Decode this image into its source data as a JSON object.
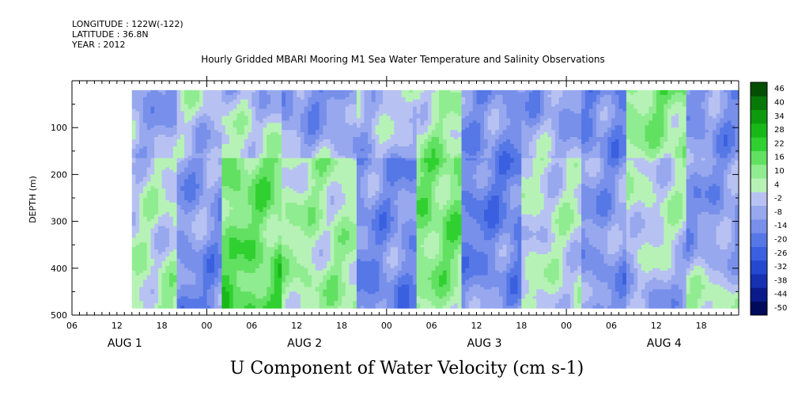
{
  "header": {
    "longitude": "LONGITUDE : 122W(-122)",
    "latitude": "LATITUDE : 36.8N",
    "year": "YEAR : 2012"
  },
  "plot_title": "Hourly Gridded MBARI Mooring M1 Sea Water Temperature and Salinity Observations",
  "main_title": "U Component of Water Velocity (cm s-1)",
  "chart_data": {
    "type": "heatmap",
    "title": "Hourly Gridded MBARI Mooring M1 Sea Water Temperature and Salinity Observations",
    "variable": "U Component of Water Velocity (cm s-1)",
    "ylabel": "DEPTH (m)",
    "ylim": [
      500,
      0
    ],
    "y_reversed": true,
    "y_ticks": [
      100,
      200,
      300,
      400,
      500
    ],
    "x_start_hour": 6,
    "x_end_hour": 95,
    "x_tick_labels": [
      "06",
      "12",
      "18",
      "00",
      "06",
      "12",
      "18",
      "00",
      "06",
      "12",
      "18",
      "00",
      "06",
      "12",
      "18"
    ],
    "x_tick_hours": [
      6,
      12,
      18,
      24,
      30,
      36,
      42,
      48,
      54,
      60,
      66,
      72,
      78,
      84,
      90
    ],
    "day_labels": [
      "AUG 1",
      "AUG 2",
      "AUG 3",
      "AUG 4"
    ],
    "day_label_hours": [
      12,
      36,
      60,
      84
    ],
    "data_start_hour": 14,
    "data_depth_range": [
      20,
      485
    ],
    "colorbar": {
      "levels": [
        -50,
        -44,
        -38,
        -32,
        -26,
        -20,
        -14,
        -8,
        -2,
        4,
        10,
        16,
        22,
        28,
        34,
        40,
        46
      ],
      "labels": [
        "46",
        "40",
        "34",
        "28",
        "22",
        "16",
        "10",
        "4",
        "-2",
        "-8",
        "-14",
        "-20",
        "-26",
        "-32",
        "-38",
        "-44",
        "-50"
      ],
      "colors_low_to_high": [
        "#000a5a",
        "#0a1a8a",
        "#1530b0",
        "#2448d0",
        "#3a60e0",
        "#5678e6",
        "#7890ea",
        "#98a8ee",
        "#b8c2f2",
        "#b6f2b6",
        "#90ec90",
        "#62e062",
        "#30d030",
        "#18b818",
        "#0e9a0e",
        "#087808",
        "#044e04"
      ]
    },
    "depth_band_means_cm_s": {
      "description": "approximate dominant values by time block",
      "blocks": [
        {
          "hours": [
            14,
            20
          ],
          "near_surface": -10,
          "mid": 4,
          "deep": 10
        },
        {
          "hours": [
            20,
            26
          ],
          "near_surface": 4,
          "mid": -8,
          "deep": -14
        },
        {
          "hours": [
            26,
            34
          ],
          "near_surface": -4,
          "mid": 16,
          "deep": 22
        },
        {
          "hours": [
            34,
            44
          ],
          "near_surface": -14,
          "mid": 8,
          "deep": 10
        },
        {
          "hours": [
            44,
            52
          ],
          "near_surface": 4,
          "mid": -10,
          "deep": -14
        },
        {
          "hours": [
            52,
            58
          ],
          "near_surface": 4,
          "mid": 16,
          "deep": 10
        },
        {
          "hours": [
            58,
            66
          ],
          "near_surface": -8,
          "mid": -14,
          "deep": -8
        },
        {
          "hours": [
            66,
            74
          ],
          "near_surface": -10,
          "mid": 4,
          "deep": 4
        },
        {
          "hours": [
            74,
            80
          ],
          "near_surface": -14,
          "mid": -8,
          "deep": -10
        },
        {
          "hours": [
            80,
            88
          ],
          "near_surface": 16,
          "mid": 4,
          "deep": -8
        },
        {
          "hours": [
            88,
            95
          ],
          "near_surface": -10,
          "mid": -8,
          "deep": 10
        }
      ]
    }
  }
}
